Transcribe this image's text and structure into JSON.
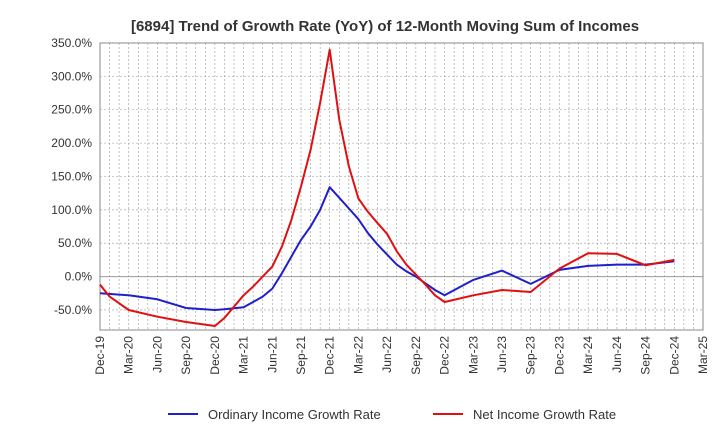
{
  "chart_data": {
    "type": "line",
    "title": "[6894]  Trend of Growth Rate (YoY) of 12-Month Moving Sum of Incomes",
    "xlabel": "",
    "ylabel": "",
    "ylim": [
      -80,
      350
    ],
    "y_ticks": [
      "350.0%",
      "300.0%",
      "250.0%",
      "200.0%",
      "150.0%",
      "100.0%",
      "50.0%",
      "0.0%",
      "-50.0%"
    ],
    "y_tick_values": [
      350,
      300,
      250,
      200,
      150,
      100,
      50,
      0,
      -50
    ],
    "x_tick_labels": [
      "Dec-19",
      "Mar-20",
      "Jun-20",
      "Sep-20",
      "Dec-20",
      "Mar-21",
      "Jun-21",
      "Sep-21",
      "Dec-21",
      "Mar-22",
      "Jun-22",
      "Sep-22",
      "Dec-22",
      "Mar-23",
      "Jun-23",
      "Sep-23",
      "Dec-23",
      "Mar-24",
      "Jun-24",
      "Sep-24",
      "Dec-24",
      "Mar-25"
    ],
    "grid": true,
    "legend_position": "bottom",
    "series": [
      {
        "name": "Ordinary Income Growth Rate",
        "color": "#1f1fcc",
        "points": [
          [
            "Dec-19",
            -25
          ],
          [
            "Mar-20",
            -28
          ],
          [
            "Jun-20",
            -34
          ],
          [
            "Sep-20",
            -47
          ],
          [
            "Dec-20",
            -50
          ],
          [
            "Jan-21",
            -49
          ],
          [
            "Mar-21",
            -46
          ],
          [
            "Apr-21",
            -38
          ],
          [
            "May-21",
            -30
          ],
          [
            "Jun-21",
            -18
          ],
          [
            "Jul-21",
            5
          ],
          [
            "Aug-21",
            30
          ],
          [
            "Sep-21",
            55
          ],
          [
            "Oct-21",
            75
          ],
          [
            "Nov-21",
            100
          ],
          [
            "Dec-21",
            134
          ],
          [
            "Jan-22",
            118
          ],
          [
            "Feb-22",
            102
          ],
          [
            "Mar-22",
            86
          ],
          [
            "Apr-22",
            65
          ],
          [
            "May-22",
            48
          ],
          [
            "Jun-22",
            33
          ],
          [
            "Jul-22",
            18
          ],
          [
            "Aug-22",
            8
          ],
          [
            "Sep-22",
            0
          ],
          [
            "Oct-22",
            -10
          ],
          [
            "Nov-22",
            -20
          ],
          [
            "Dec-22",
            -28
          ],
          [
            "Mar-23",
            -5
          ],
          [
            "Jun-23",
            9
          ],
          [
            "Sep-23",
            -11
          ],
          [
            "Dec-23",
            10
          ],
          [
            "Mar-24",
            16
          ],
          [
            "Jun-24",
            18
          ],
          [
            "Sep-24",
            18
          ],
          [
            "Dec-24",
            23
          ]
        ]
      },
      {
        "name": "Net Income Growth Rate",
        "color": "#e01010",
        "points": [
          [
            "Dec-19",
            -12
          ],
          [
            "Jan-20",
            -30
          ],
          [
            "Mar-20",
            -50
          ],
          [
            "Jun-20",
            -60
          ],
          [
            "Sep-20",
            -68
          ],
          [
            "Dec-20",
            -74
          ],
          [
            "Jan-21",
            -62
          ],
          [
            "Feb-21",
            -45
          ],
          [
            "Mar-21",
            -28
          ],
          [
            "Apr-21",
            -15
          ],
          [
            "May-21",
            0
          ],
          [
            "Jun-21",
            15
          ],
          [
            "Jul-21",
            45
          ],
          [
            "Aug-21",
            85
          ],
          [
            "Sep-21",
            135
          ],
          [
            "Oct-21",
            190
          ],
          [
            "Nov-21",
            260
          ],
          [
            "Dec-21",
            340
          ],
          [
            "Jan-22",
            235
          ],
          [
            "Feb-22",
            165
          ],
          [
            "Mar-22",
            117
          ],
          [
            "Apr-22",
            97
          ],
          [
            "May-22",
            80
          ],
          [
            "Jun-22",
            64
          ],
          [
            "Jul-22",
            38
          ],
          [
            "Aug-22",
            18
          ],
          [
            "Sep-22",
            3
          ],
          [
            "Oct-22",
            -12
          ],
          [
            "Nov-22",
            -28
          ],
          [
            "Dec-22",
            -38
          ],
          [
            "Mar-23",
            -28
          ],
          [
            "Jun-23",
            -20
          ],
          [
            "Sep-23",
            -23
          ],
          [
            "Dec-23",
            12
          ],
          [
            "Mar-24",
            35
          ],
          [
            "Jun-24",
            34
          ],
          [
            "Sep-24",
            17
          ],
          [
            "Dec-24",
            25
          ]
        ]
      }
    ]
  }
}
